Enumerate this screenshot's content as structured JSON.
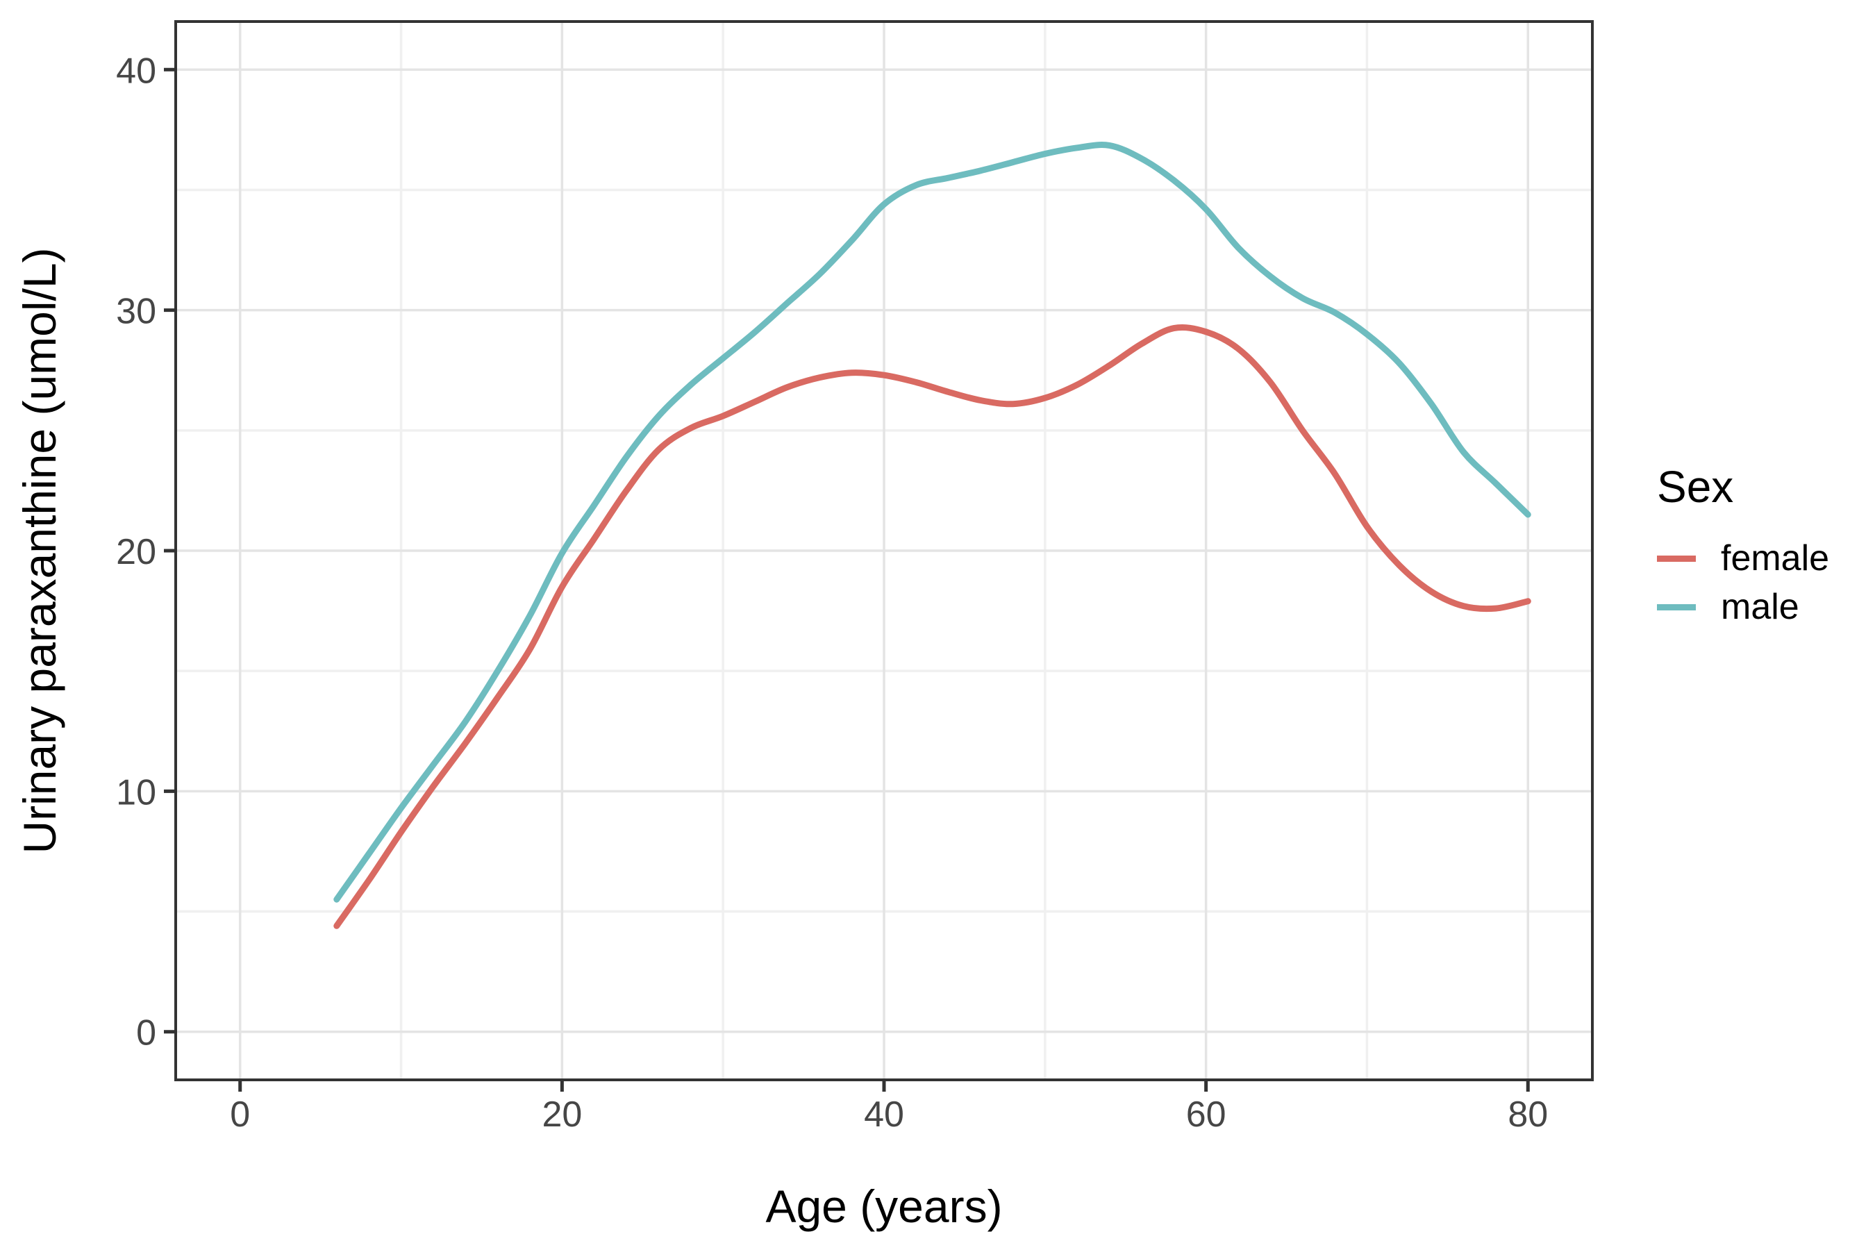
{
  "figure": {
    "background": "#ffffff",
    "panel_border_color": "#333333",
    "grid_major_color": "#e4e4e4",
    "grid_minor_color": "#f0f0f0",
    "tick_color": "#333333",
    "tick_label_color": "#464646",
    "text_color": "#000000"
  },
  "chart_data": {
    "type": "line",
    "title": "",
    "xlabel": "Age (years)",
    "ylabel": "Urinary paraxanthine (umol/L)",
    "xlim": [
      -4,
      84
    ],
    "ylim": [
      -2,
      42
    ],
    "x_ticks": [
      0,
      20,
      40,
      60,
      80
    ],
    "y_ticks": [
      0,
      10,
      20,
      30,
      40
    ],
    "x_minor_ticks": [
      10,
      30,
      50,
      70
    ],
    "y_minor_ticks": [
      5,
      15,
      25,
      35
    ],
    "grid": "major+minor",
    "legend_position": "right",
    "x": [
      6,
      8,
      10,
      12,
      14,
      16,
      18,
      20,
      22,
      24,
      26,
      28,
      30,
      32,
      34,
      36,
      38,
      40,
      42,
      44,
      46,
      48,
      50,
      52,
      54,
      56,
      58,
      60,
      62,
      64,
      66,
      68,
      70,
      72,
      74,
      76,
      78,
      80
    ],
    "series": [
      {
        "name": "female",
        "color": "#D96A62",
        "values": [
          4.4,
          6.3,
          8.3,
          10.2,
          12.0,
          13.9,
          15.9,
          18.5,
          20.5,
          22.5,
          24.2,
          25.1,
          25.6,
          26.2,
          26.8,
          27.2,
          27.4,
          27.3,
          27.0,
          26.6,
          26.25,
          26.1,
          26.35,
          26.9,
          27.7,
          28.6,
          29.25,
          29.1,
          28.4,
          27.0,
          25.0,
          23.2,
          21.0,
          19.4,
          18.3,
          17.7,
          17.6,
          17.9
        ]
      },
      {
        "name": "male",
        "color": "#6EBCBF",
        "values": [
          5.5,
          7.4,
          9.3,
          11.1,
          12.9,
          15.0,
          17.3,
          19.9,
          21.9,
          23.9,
          25.6,
          26.9,
          28.0,
          29.1,
          30.3,
          31.5,
          32.9,
          34.4,
          35.2,
          35.5,
          35.8,
          36.15,
          36.5,
          36.75,
          36.85,
          36.3,
          35.4,
          34.2,
          32.6,
          31.4,
          30.5,
          29.9,
          29.0,
          27.8,
          26.1,
          24.1,
          22.8,
          21.5
        ]
      }
    ]
  },
  "axes": {
    "x_tick_labels": [
      "0",
      "20",
      "40",
      "60",
      "80"
    ],
    "y_tick_labels": [
      "0",
      "10",
      "20",
      "30",
      "40"
    ]
  },
  "legend": {
    "title": "Sex",
    "items": [
      {
        "label": "female",
        "color": "#D96A62"
      },
      {
        "label": "male",
        "color": "#6EBCBF"
      }
    ]
  }
}
